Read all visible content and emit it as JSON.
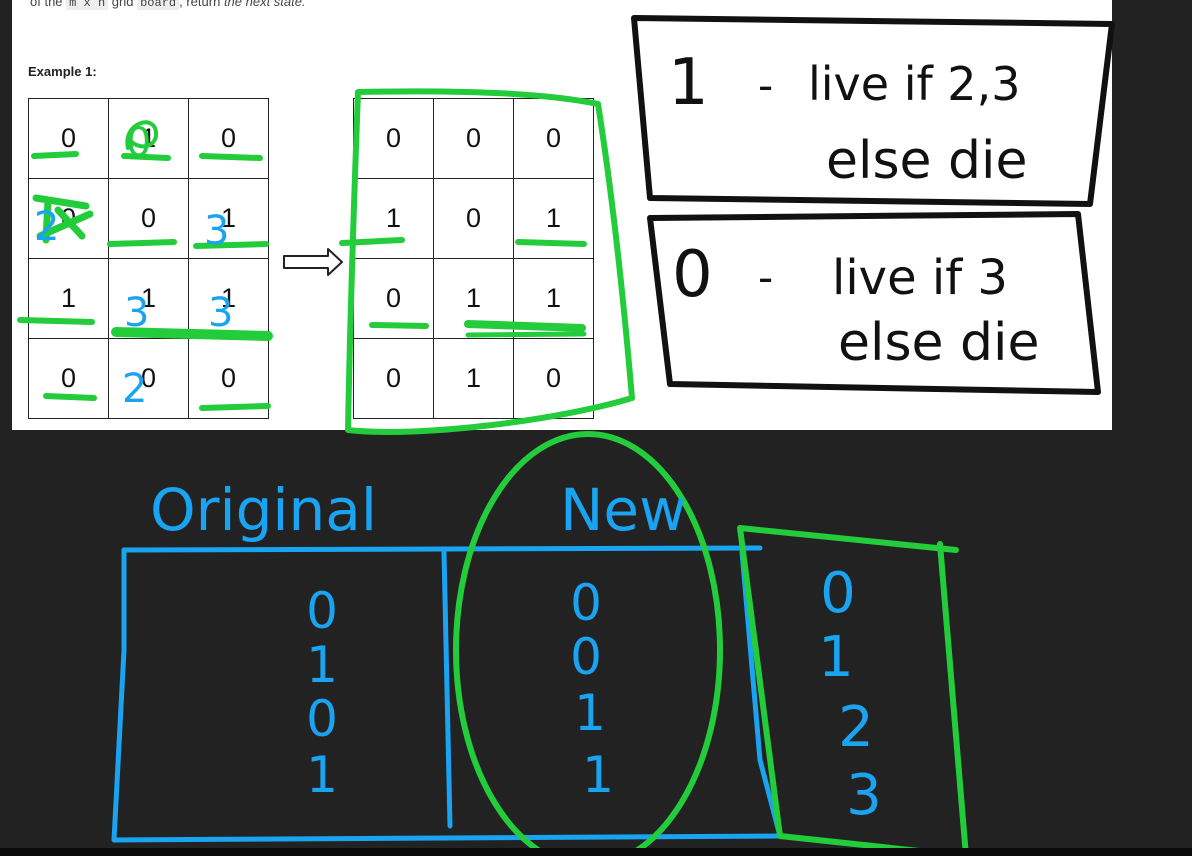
{
  "doc": {
    "intro_prefix": "of the",
    "code_mxn": "m x n",
    "intro_middle": "grid",
    "code_board": "board",
    "intro_suffix": ", return",
    "intro_emph": "the next state.",
    "example_label": "Example 1:"
  },
  "grid_before": [
    [
      "0",
      "1",
      "0"
    ],
    [
      "0",
      "0",
      "1"
    ],
    [
      "1",
      "1",
      "1"
    ],
    [
      "0",
      "0",
      "0"
    ]
  ],
  "grid_after": [
    [
      "0",
      "0",
      "0"
    ],
    [
      "1",
      "0",
      "1"
    ],
    [
      "0",
      "1",
      "1"
    ],
    [
      "0",
      "1",
      "0"
    ]
  ],
  "annotations": {
    "before_overwrites": [
      "0",
      "2",
      "3",
      "3",
      "3",
      "2"
    ],
    "rule_live": {
      "digit": "1",
      "dash": "-",
      "line1": "live if 2,3",
      "line2": "else die"
    },
    "rule_dead": {
      "digit": "0",
      "dash": "-",
      "line1": "live if 3",
      "line2": "else die"
    },
    "table_original_header": "Original",
    "table_new_header": "New",
    "original_values": [
      "0",
      "1",
      "0",
      "1"
    ],
    "new_values": [
      "0",
      "0",
      "1",
      "1"
    ],
    "code_values": [
      "0",
      "1",
      "2",
      "3"
    ]
  },
  "colors": {
    "green": "#22cc3a",
    "blue": "#1aa3f0",
    "ink": "#111111",
    "board": "#222222"
  }
}
